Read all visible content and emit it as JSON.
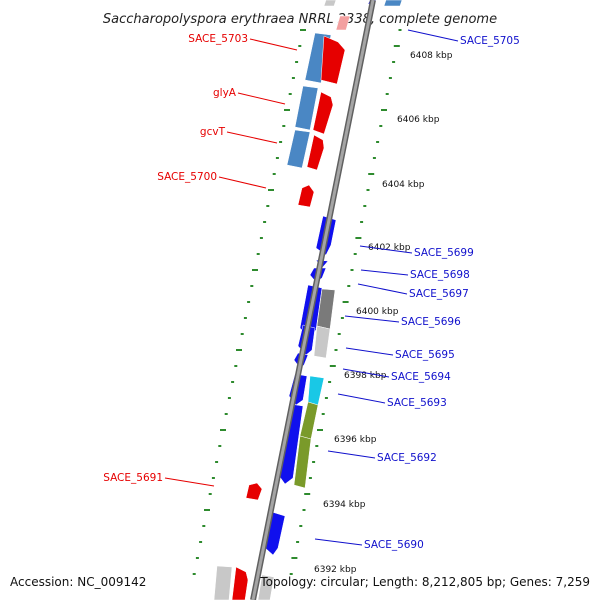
{
  "title": "Saccharopolyspora erythraea NRRL 2338, complete genome",
  "footer": {
    "accession": "Accession: NC_009142",
    "topology": "Topology: circular; Length: 8,212,805 bp; Genes: 7,259"
  },
  "colors": {
    "background": "#ffffff",
    "backbone": "#8c8c8c",
    "forward_gene": "#e60000",
    "reverse_gene": "#1010ee",
    "gc_skew_fwd": "#4a87c4",
    "tick": "#2e8b2e",
    "gray_feature": "#7a7a7a",
    "light_gray_feature": "#c8c8c8",
    "cyan_feature": "#19c8e6",
    "olive_feature": "#7a9a2a",
    "label_left": "#e60000",
    "label_right": "#1010cc"
  },
  "scale_labels": [
    "6408 kbp",
    "6406 kbp",
    "6404 kbp",
    "6402 kbp",
    "6400 kbp",
    "6398 kbp",
    "6396 kbp",
    "6394 kbp",
    "6392 kbp"
  ],
  "gene_labels_left": [
    "SACE_5703",
    "glyA",
    "gcvT",
    "SACE_5700",
    "SACE_5691"
  ],
  "gene_labels_right": [
    "SACE_5705",
    "SACE_5699",
    "SACE_5698",
    "SACE_5697",
    "SACE_5696",
    "SACE_5695",
    "SACE_5694",
    "SACE_5693",
    "SACE_5692",
    "SACE_5690"
  ]
}
